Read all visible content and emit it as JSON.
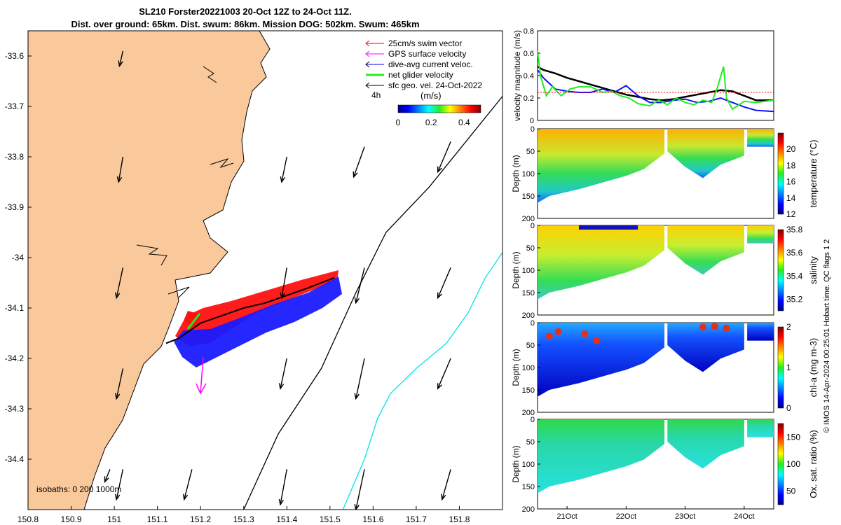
{
  "title_line1": "SL210 Forster20221003 20-Oct 12Z to 24-Oct 11Z.",
  "title_line2": "Dist. over ground: 65km. Dist. swum: 86km. Mission DOG: 502km. Swum: 465km",
  "credit": "© IMOS 14-Apr-2024 00:25:01 Hobart time. QC flags 1  2",
  "colors": {
    "land": "#f9c89b",
    "swim": "#ff0000",
    "gps": "#ff00ff",
    "dive": "#0000ff",
    "net": "#22ee22",
    "geo": "#000000",
    "isobath200": "#000000",
    "isobath1000": "#00e5e5"
  },
  "chart_data": [
    {
      "type": "map",
      "xlim": [
        150.8,
        151.9
      ],
      "ylim": [
        -34.5,
        -33.55
      ],
      "xticks": [
        "150.8",
        "150.9",
        "151",
        "151.1",
        "151.2",
        "151.3",
        "151.4",
        "151.5",
        "151.6",
        "151.7",
        "151.8"
      ],
      "yticks": [
        "-33.6",
        "-33.7",
        "-33.8",
        "-33.9",
        "-34",
        "-34.1",
        "-34.2",
        "-34.3",
        "-34.4"
      ],
      "legend": [
        "25cm/s swim vector",
        "GPS surface velocity",
        "dive-avg current veloc.",
        "net glider velocity",
        "sfc geo. vel. 24-Oct-2022"
      ],
      "legend_extra": "4h",
      "colorbar": {
        "label": "(m/s)",
        "ticks": [
          "0",
          "0.2",
          "0.4"
        ],
        "range": [
          0,
          0.5
        ]
      },
      "isobaths_label": "isobaths: 0  200  1000m",
      "track": [
        [
          151.12,
          -34.17
        ],
        [
          151.15,
          -34.16
        ],
        [
          151.2,
          -34.13
        ],
        [
          151.25,
          -34.115
        ],
        [
          151.3,
          -34.1
        ],
        [
          151.35,
          -34.09
        ],
        [
          151.4,
          -34.075
        ],
        [
          151.45,
          -34.06
        ],
        [
          151.48,
          -34.05
        ],
        [
          151.51,
          -34.04
        ]
      ],
      "isobath_200": [
        [
          151.3,
          -34.5
        ],
        [
          151.38,
          -34.35
        ],
        [
          151.48,
          -34.22
        ],
        [
          151.56,
          -34.07
        ],
        [
          151.63,
          -33.95
        ],
        [
          151.73,
          -33.86
        ],
        [
          151.9,
          -33.68
        ]
      ],
      "isobath_1000": [
        [
          151.53,
          -34.5
        ],
        [
          151.58,
          -34.4
        ],
        [
          151.61,
          -34.32
        ],
        [
          151.64,
          -34.27
        ],
        [
          151.7,
          -34.22
        ],
        [
          151.77,
          -34.17
        ],
        [
          151.82,
          -34.11
        ],
        [
          151.86,
          -34.04
        ],
        [
          151.9,
          -33.99
        ]
      ],
      "geo_vectors": [
        [
          151.02,
          -33.59,
          -0.008,
          -0.03
        ],
        [
          151.02,
          -33.8,
          -0.01,
          -0.05
        ],
        [
          151.02,
          -34.02,
          -0.015,
          -0.06
        ],
        [
          151.02,
          -34.22,
          -0.015,
          -0.06
        ],
        [
          151.02,
          -34.42,
          -0.015,
          -0.06
        ],
        [
          151.18,
          -34.42,
          -0.018,
          -0.06
        ],
        [
          151.4,
          -33.8,
          -0.012,
          -0.05
        ],
        [
          151.4,
          -34.02,
          -0.012,
          -0.06
        ],
        [
          151.4,
          -34.2,
          -0.015,
          -0.06
        ],
        [
          151.4,
          -34.42,
          -0.015,
          -0.07
        ],
        [
          151.58,
          -33.78,
          -0.025,
          -0.06
        ],
        [
          151.58,
          -34.02,
          -0.02,
          -0.07
        ],
        [
          151.58,
          -34.2,
          -0.02,
          -0.08
        ],
        [
          151.58,
          -34.42,
          -0.02,
          -0.08
        ],
        [
          151.78,
          -33.77,
          -0.03,
          -0.06
        ],
        [
          151.78,
          -34.02,
          -0.03,
          -0.06
        ],
        [
          151.78,
          -34.2,
          -0.03,
          -0.06
        ],
        [
          151.78,
          -34.42,
          -0.02,
          -0.06
        ],
        [
          150.99,
          -34.42,
          -0.012,
          -0.025
        ]
      ]
    },
    {
      "type": "line",
      "ylabel": "velocity magnitude (m/s)",
      "ylim": [
        0,
        0.8
      ],
      "yticks": [
        "0",
        "0.2",
        "0.4",
        "0.6",
        "0.8"
      ],
      "xlim": [
        20.5,
        24.5
      ],
      "series": [
        {
          "x": [
            20.5,
            20.6,
            20.8,
            21.0,
            21.2,
            21.4,
            21.6,
            21.8,
            22.0,
            22.2,
            22.4,
            22.6,
            22.8,
            23.0,
            23.2,
            23.4,
            23.6,
            23.8,
            24.0,
            24.2,
            24.5
          ],
          "values": [
            0.48,
            0.45,
            0.42,
            0.38,
            0.35,
            0.32,
            0.29,
            0.26,
            0.23,
            0.21,
            0.19,
            0.18,
            0.19,
            0.21,
            0.23,
            0.25,
            0.27,
            0.26,
            0.22,
            0.18,
            0.18
          ]
        },
        {
          "x": [
            20.5,
            20.6,
            20.8,
            21.0,
            21.2,
            21.4,
            21.6,
            21.8,
            22.0,
            22.2,
            22.4,
            22.6,
            22.8,
            23.0,
            23.2,
            23.4,
            23.6,
            23.8,
            24.0,
            24.2,
            24.5
          ],
          "values": [
            0.45,
            0.38,
            0.28,
            0.26,
            0.25,
            0.25,
            0.28,
            0.25,
            0.31,
            0.22,
            0.16,
            0.16,
            0.18,
            0.19,
            0.16,
            0.17,
            0.2,
            0.16,
            0.12,
            0.09,
            0.08
          ]
        },
        {
          "x": [
            20.5,
            20.55,
            20.65,
            20.75,
            20.9,
            21.05,
            21.2,
            21.4,
            21.6,
            21.75,
            21.9,
            22.05,
            22.2,
            22.4,
            22.55,
            22.7,
            22.85,
            23.0,
            23.15,
            23.3,
            23.45,
            23.55,
            23.65,
            23.7,
            23.8,
            24.0,
            24.2,
            24.5
          ],
          "values": [
            0.62,
            0.4,
            0.22,
            0.3,
            0.22,
            0.28,
            0.3,
            0.3,
            0.25,
            0.26,
            0.22,
            0.2,
            0.15,
            0.13,
            0.18,
            0.14,
            0.2,
            0.16,
            0.14,
            0.18,
            0.16,
            0.3,
            0.48,
            0.2,
            0.1,
            0.17,
            0.16,
            0.18
          ]
        },
        {
          "x": [
            20.5,
            24.5
          ],
          "values": [
            0.25,
            0.25
          ]
        }
      ]
    },
    {
      "type": "heatmap",
      "variable": "temperature",
      "ylabel": "Depth (m)",
      "colorbar_label": "temperature (°C)",
      "colorbar_ticks": [
        "12",
        "14",
        "16",
        "18",
        "20"
      ],
      "range": [
        12,
        22
      ],
      "ylim": [
        0,
        200
      ],
      "yticks": [
        "0",
        "50",
        "100",
        "150",
        "200"
      ]
    },
    {
      "type": "heatmap",
      "variable": "salinity",
      "ylabel": "Depth (m)",
      "colorbar_label": "salinity",
      "colorbar_ticks": [
        "35.2",
        "35.4",
        "35.6",
        "35.8"
      ],
      "range": [
        35.1,
        35.8
      ],
      "ylim": [
        0,
        200
      ],
      "yticks": [
        "0",
        "50",
        "100",
        "150",
        "200"
      ]
    },
    {
      "type": "heatmap",
      "variable": "chl-a",
      "ylabel": "Depth (m)",
      "colorbar_label": "chl-a (mg m-3)",
      "colorbar_ticks": [
        "0",
        "1",
        "2"
      ],
      "range": [
        0,
        2
      ],
      "ylim": [
        0,
        200
      ],
      "yticks": [
        "0",
        "50",
        "100",
        "150",
        "200"
      ]
    },
    {
      "type": "heatmap",
      "variable": "oxygen saturation",
      "ylabel": "Depth (m)",
      "colorbar_label": "Ox. sat. ratio (%)",
      "colorbar_ticks": [
        "50",
        "100",
        "150"
      ],
      "range": [
        25,
        175
      ],
      "ylim": [
        0,
        200
      ],
      "yticks": [
        "0",
        "50",
        "100",
        "150",
        "200"
      ],
      "xticks": [
        "21Oct",
        "22Oct",
        "23Oct",
        "24Oct"
      ]
    }
  ]
}
